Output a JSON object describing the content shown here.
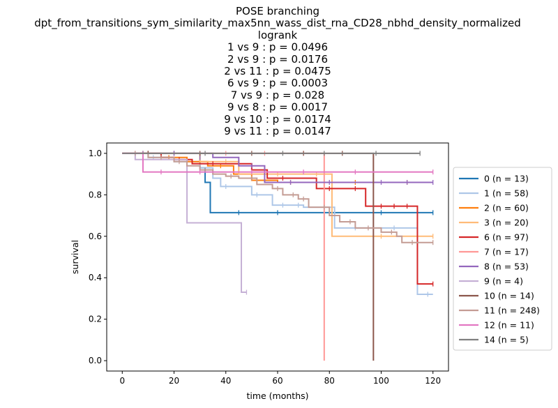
{
  "chart_data": {
    "type": "line",
    "title_lines": [
      "POSE branching",
      "dpt_from_transitions_sym_similarity_max5nn_wass_dist_rna_CD28_nbhd_density_normalized",
      "logrank",
      "1 vs 9 :  p = 0.0496",
      "2 vs 9 :  p = 0.0176",
      "2 vs 11 :  p = 0.0475",
      "6 vs 9 :  p = 0.0003",
      "7 vs 9 :  p = 0.028",
      "9 vs 8 :  p = 0.0017",
      "9 vs 10 :  p = 0.0174",
      "9 vs 11 :  p = 0.0147"
    ],
    "xlabel": "time (months)",
    "ylabel": "survival",
    "xlim": [
      -6,
      126
    ],
    "ylim": [
      -0.05,
      1.05
    ],
    "xticks": [
      0,
      20,
      40,
      60,
      80,
      100,
      120
    ],
    "yticks": [
      0.0,
      0.2,
      0.4,
      0.6,
      0.8,
      1.0
    ],
    "xtick_labels": [
      "0",
      "20",
      "40",
      "60",
      "80",
      "100",
      "120"
    ],
    "ytick_labels": [
      "0.0",
      "0.2",
      "0.4",
      "0.6",
      "0.8",
      "1.0"
    ],
    "legend_position": "right-outside",
    "series": [
      {
        "name": "0 (n = 13)",
        "color": "#1f77b4",
        "steps": [
          [
            0,
            1.0
          ],
          [
            30,
            0.93
          ],
          [
            32,
            0.86
          ],
          [
            34,
            0.714
          ],
          [
            120,
            0.714
          ]
        ],
        "censors": [
          [
            10,
            1.0
          ],
          [
            20,
            1.0
          ],
          [
            45,
            0.714
          ],
          [
            60,
            0.714
          ],
          [
            80,
            0.714
          ],
          [
            100,
            0.714
          ],
          [
            120,
            0.714
          ]
        ]
      },
      {
        "name": "1 (n = 58)",
        "color": "#aec7e8",
        "steps": [
          [
            0,
            1.0
          ],
          [
            10,
            0.98
          ],
          [
            20,
            0.96
          ],
          [
            30,
            0.93
          ],
          [
            35,
            0.88
          ],
          [
            38,
            0.84
          ],
          [
            45,
            0.84
          ],
          [
            50,
            0.8
          ],
          [
            58,
            0.75
          ],
          [
            70,
            0.74
          ],
          [
            75,
            0.74
          ],
          [
            82,
            0.64
          ],
          [
            100,
            0.64
          ],
          [
            114,
            0.32
          ],
          [
            120,
            0.32
          ]
        ],
        "censors": [
          [
            5,
            1.0
          ],
          [
            12,
            0.98
          ],
          [
            25,
            0.96
          ],
          [
            40,
            0.84
          ],
          [
            52,
            0.8
          ],
          [
            62,
            0.75
          ],
          [
            68,
            0.75
          ],
          [
            90,
            0.64
          ],
          [
            105,
            0.64
          ],
          [
            118,
            0.32
          ]
        ]
      },
      {
        "name": "2 (n = 60)",
        "color": "#ff7f0e",
        "steps": [
          [
            0,
            1.0
          ],
          [
            15,
            0.98
          ],
          [
            25,
            0.96
          ],
          [
            33,
            0.94
          ],
          [
            43,
            0.9
          ],
          [
            50,
            0.87
          ],
          [
            60,
            0.86
          ],
          [
            72,
            0.86
          ],
          [
            120,
            0.86
          ]
        ],
        "censors": [
          [
            8,
            1.0
          ],
          [
            18,
            0.98
          ],
          [
            30,
            0.96
          ],
          [
            38,
            0.94
          ],
          [
            55,
            0.87
          ],
          [
            65,
            0.86
          ],
          [
            90,
            0.86
          ],
          [
            110,
            0.86
          ]
        ]
      },
      {
        "name": "3 (n = 20)",
        "color": "#ffbb78",
        "steps": [
          [
            0,
            1.0
          ],
          [
            30,
            0.96
          ],
          [
            45,
            0.9
          ],
          [
            79,
            0.9
          ],
          [
            81,
            0.6
          ],
          [
            120,
            0.6
          ]
        ],
        "censors": [
          [
            10,
            1.0
          ],
          [
            40,
            0.96
          ],
          [
            60,
            0.9
          ],
          [
            75,
            0.9
          ],
          [
            100,
            0.6
          ],
          [
            120,
            0.6
          ]
        ]
      },
      {
        "name": "6 (n = 97)",
        "color": "#d62728",
        "steps": [
          [
            0,
            1.0
          ],
          [
            15,
            0.98
          ],
          [
            20,
            0.97
          ],
          [
            27,
            0.95
          ],
          [
            40,
            0.95
          ],
          [
            50,
            0.92
          ],
          [
            56,
            0.88
          ],
          [
            70,
            0.88
          ],
          [
            75,
            0.83
          ],
          [
            94,
            0.83
          ],
          [
            94,
            0.745
          ],
          [
            114,
            0.745
          ],
          [
            114,
            0.37
          ],
          [
            120,
            0.37
          ]
        ],
        "censors": [
          [
            10,
            1.0
          ],
          [
            22,
            0.97
          ],
          [
            35,
            0.95
          ],
          [
            45,
            0.95
          ],
          [
            62,
            0.88
          ],
          [
            80,
            0.83
          ],
          [
            90,
            0.83
          ],
          [
            100,
            0.745
          ],
          [
            105,
            0.745
          ],
          [
            110,
            0.745
          ],
          [
            120,
            0.37
          ]
        ]
      },
      {
        "name": "7 (n = 17)",
        "color": "#ff9896",
        "steps": [
          [
            0,
            1.0
          ],
          [
            78,
            1.0
          ],
          [
            78,
            0.0
          ]
        ],
        "censors": [
          [
            5,
            1.0
          ],
          [
            20,
            1.0
          ],
          [
            40,
            1.0
          ],
          [
            55,
            1.0
          ],
          [
            70,
            1.0
          ]
        ]
      },
      {
        "name": "8 (n = 53)",
        "color": "#9467bd",
        "steps": [
          [
            0,
            1.0
          ],
          [
            35,
            0.98
          ],
          [
            45,
            0.94
          ],
          [
            54,
            0.94
          ],
          [
            55,
            0.86
          ],
          [
            120,
            0.86
          ]
        ],
        "censors": [
          [
            8,
            1.0
          ],
          [
            20,
            1.0
          ],
          [
            30,
            0.98
          ],
          [
            50,
            0.94
          ],
          [
            65,
            0.86
          ],
          [
            80,
            0.86
          ],
          [
            100,
            0.86
          ],
          [
            110,
            0.86
          ],
          [
            120,
            0.86
          ]
        ]
      },
      {
        "name": "9 (n = 4)",
        "color": "#c5b0d5",
        "steps": [
          [
            0,
            1.0
          ],
          [
            5,
            0.97
          ],
          [
            25,
            0.97
          ],
          [
            25,
            0.665
          ],
          [
            46,
            0.665
          ],
          [
            46,
            0.33
          ],
          [
            48,
            0.33
          ]
        ],
        "censors": [
          [
            48,
            0.33
          ]
        ]
      },
      {
        "name": "10 (n = 14)",
        "color": "#8c564b",
        "steps": [
          [
            0,
            1.0
          ],
          [
            97,
            1.0
          ],
          [
            97,
            0.0
          ]
        ],
        "censors": [
          [
            10,
            1.0
          ],
          [
            30,
            1.0
          ],
          [
            50,
            1.0
          ],
          [
            70,
            1.0
          ],
          [
            85,
            1.0
          ]
        ]
      },
      {
        "name": "11 (n = 248)",
        "color": "#c49c94",
        "steps": [
          [
            0,
            1.0
          ],
          [
            10,
            0.98
          ],
          [
            20,
            0.96
          ],
          [
            25,
            0.94
          ],
          [
            30,
            0.92
          ],
          [
            35,
            0.9
          ],
          [
            40,
            0.89
          ],
          [
            45,
            0.88
          ],
          [
            52,
            0.85
          ],
          [
            58,
            0.83
          ],
          [
            62,
            0.8
          ],
          [
            68,
            0.78
          ],
          [
            72,
            0.74
          ],
          [
            80,
            0.7
          ],
          [
            84,
            0.67
          ],
          [
            90,
            0.64
          ],
          [
            100,
            0.62
          ],
          [
            106,
            0.6
          ],
          [
            108,
            0.57
          ],
          [
            120,
            0.57
          ]
        ],
        "censors": [
          [
            5,
            1.0
          ],
          [
            15,
            0.98
          ],
          [
            22,
            0.96
          ],
          [
            32,
            0.92
          ],
          [
            42,
            0.89
          ],
          [
            50,
            0.88
          ],
          [
            60,
            0.83
          ],
          [
            66,
            0.8
          ],
          [
            70,
            0.78
          ],
          [
            78,
            0.74
          ],
          [
            88,
            0.67
          ],
          [
            95,
            0.64
          ],
          [
            104,
            0.62
          ],
          [
            112,
            0.57
          ],
          [
            120,
            0.57
          ]
        ]
      },
      {
        "name": "12 (n = 11)",
        "color": "#e377c2",
        "steps": [
          [
            0,
            1.0
          ],
          [
            8,
            0.91
          ],
          [
            120,
            0.91
          ]
        ],
        "censors": [
          [
            15,
            0.91
          ],
          [
            30,
            0.91
          ],
          [
            50,
            0.91
          ],
          [
            70,
            0.91
          ],
          [
            90,
            0.91
          ],
          [
            120,
            0.91
          ]
        ]
      },
      {
        "name": "14 (n = 5)",
        "color": "#7f7f7f",
        "steps": [
          [
            0,
            1.0
          ],
          [
            115,
            1.0
          ]
        ],
        "censors": [
          [
            32,
            1.0
          ],
          [
            62,
            1.0
          ],
          [
            78,
            1.0
          ],
          [
            98,
            1.0
          ],
          [
            115,
            1.0
          ]
        ]
      }
    ]
  }
}
